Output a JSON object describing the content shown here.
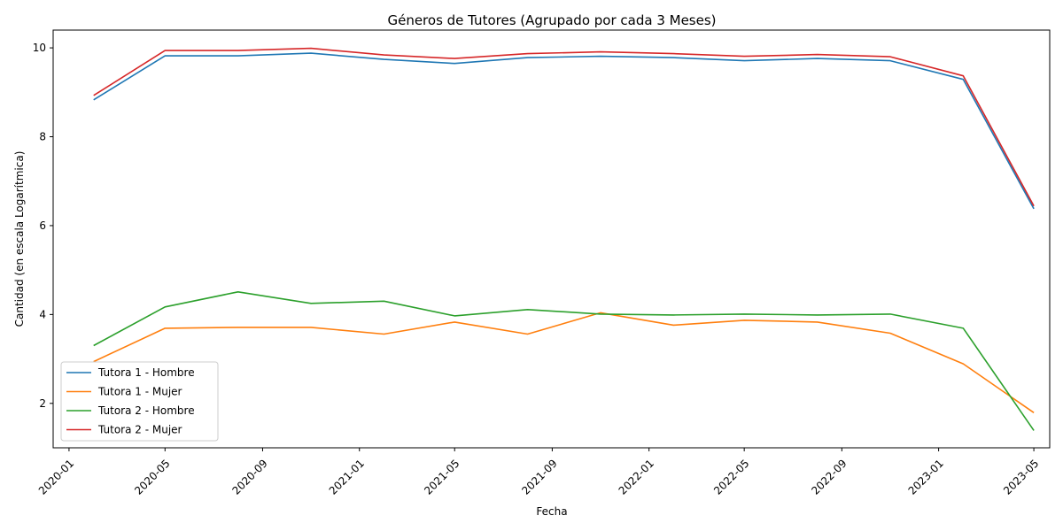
{
  "chart_data": {
    "type": "line",
    "title": "Géneros de Tutores (Agrupado por cada 3 Meses)",
    "xlabel": "Fecha",
    "ylabel": "Cantidad (en escala Logarítmica)",
    "x": [
      "2020-02-01",
      "2020-05-01",
      "2020-08-01",
      "2020-11-01",
      "2021-02-01",
      "2021-05-01",
      "2021-08-01",
      "2021-11-01",
      "2022-02-01",
      "2022-05-01",
      "2022-08-01",
      "2022-11-01",
      "2023-02-01",
      "2023-05-01"
    ],
    "xticks": [
      "2020-01",
      "2020-05",
      "2020-09",
      "2021-01",
      "2021-05",
      "2021-09",
      "2022-01",
      "2022-05",
      "2022-09",
      "2023-01",
      "2023-05"
    ],
    "xlim": [
      "2019-12-12",
      "2023-05-21"
    ],
    "ylim": [
      1.0,
      10.4
    ],
    "yticks": [
      2,
      4,
      6,
      8,
      10
    ],
    "legend_position": "lower-left",
    "grid": false,
    "series": [
      {
        "name": "Tutora 1 - Hombre",
        "color": "#1f77b4",
        "values": [
          8.83,
          9.82,
          9.82,
          9.88,
          9.74,
          9.65,
          9.78,
          9.81,
          9.78,
          9.71,
          9.76,
          9.71,
          9.29,
          6.38
        ]
      },
      {
        "name": "Tutora 1 - Mujer",
        "color": "#ff7f0e",
        "values": [
          2.94,
          3.69,
          3.71,
          3.71,
          3.56,
          3.83,
          3.56,
          4.04,
          3.76,
          3.87,
          3.83,
          3.58,
          2.89,
          1.79
        ]
      },
      {
        "name": "Tutora 2 - Hombre",
        "color": "#2ca02c",
        "values": [
          3.3,
          4.17,
          4.51,
          4.25,
          4.3,
          3.97,
          4.11,
          4.01,
          3.99,
          4.01,
          3.99,
          4.01,
          3.69,
          1.39
        ]
      },
      {
        "name": "Tutora 2 - Mujer",
        "color": "#d62728",
        "values": [
          8.93,
          9.94,
          9.94,
          9.99,
          9.84,
          9.76,
          9.87,
          9.91,
          9.87,
          9.81,
          9.85,
          9.8,
          9.37,
          6.44
        ]
      }
    ]
  }
}
